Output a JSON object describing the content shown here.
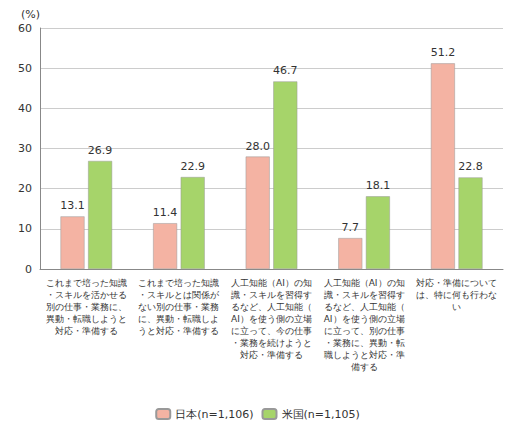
{
  "chart_data": {
    "type": "bar",
    "y_label": "(%)",
    "categories": [
      "これまで培った知識・スキルを活かせる別の仕事・業務に、異動・転職しようと対応・準備する",
      "これまで培った知識・スキルとは関係がない別の仕事・業務に、異動・転職しようと対応・準備する",
      "人工知能（AI）の知識・スキルを習得するなど、人工知能（AI）を使う側の立場に立って、今の仕事・業務を続けようと対応・準備する",
      "人工知能（AI）の知識・スキルを習得するなど、人工知能（AI）を使う側の立場に立って、別の仕事・業務に、異動・転職しようと対応・準備する",
      "対応・準備については、特に何も行わない"
    ],
    "series": [
      {
        "name": "日本(n=1,106)",
        "color": "#f4b3a3",
        "values": [
          13.1,
          11.4,
          28.0,
          7.7,
          51.2
        ],
        "value_labels": [
          "13.1",
          "11.4",
          "28.0",
          "7.7",
          "51.2"
        ]
      },
      {
        "name": "米国(n=1,105)",
        "color": "#a6d46a",
        "values": [
          26.9,
          22.9,
          46.7,
          18.1,
          22.8
        ]
      }
    ],
    "ylim": [
      0,
      60
    ],
    "yticks": [
      0,
      10,
      20,
      30,
      40,
      50,
      60
    ],
    "grid": true,
    "legend": "bottom",
    "data_labels": true
  }
}
